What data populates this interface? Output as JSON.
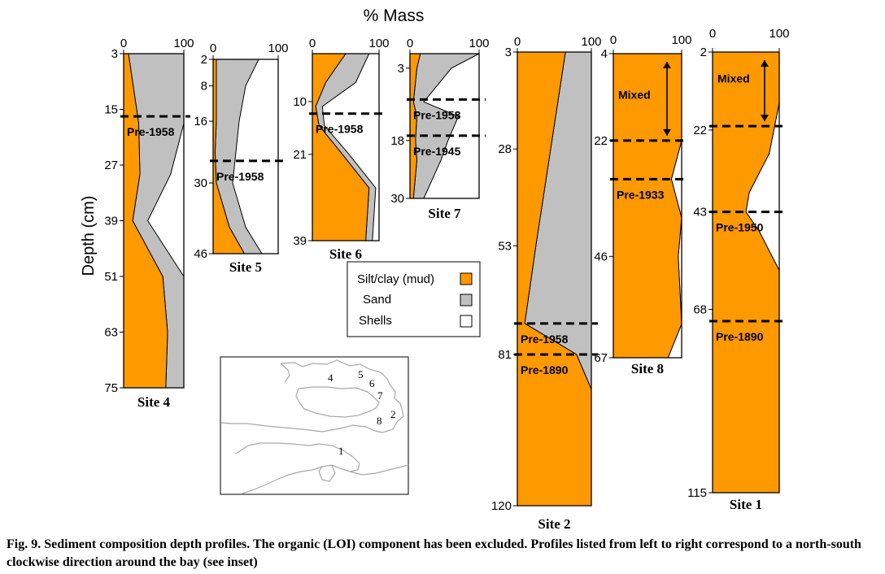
{
  "figure": {
    "title": "% Mass",
    "y_label": "Depth (cm)",
    "caption": "Fig. 9.  Sediment composition depth profiles.  The organic (LOI) component has been excluded. Profiles listed from left to right correspond to a north-south clockwise direction around the bay (see inset)"
  },
  "legend": {
    "items": [
      {
        "label": "Silt/clay (mud)",
        "color": "#ff9900"
      },
      {
        "label": "Sand",
        "color": "#c0c0c0"
      },
      {
        "label": "Shells",
        "color": "#ffffff"
      }
    ]
  },
  "inset_map": {
    "site_labels": [
      "4",
      "5",
      "6",
      "7",
      "2",
      "8",
      "1"
    ]
  },
  "chart_data": [
    {
      "type": "area",
      "site": "Site 4",
      "x_ticks": [
        "0",
        "100"
      ],
      "xlim": [
        0,
        100
      ],
      "y_ticks": [
        "3",
        "15",
        "27",
        "39",
        "51",
        "63",
        "75"
      ],
      "ylim": [
        3,
        75
      ],
      "depth": [
        3,
        18,
        29,
        39,
        51,
        63,
        75
      ],
      "silt": [
        8,
        25,
        27,
        15,
        65,
        73,
        70
      ],
      "silt_sand": [
        100,
        100,
        78,
        40,
        100,
        100,
        100
      ],
      "markers": [
        {
          "depth": 16.5,
          "label": "Pre-1958"
        }
      ]
    },
    {
      "type": "area",
      "site": "Site 5",
      "x_ticks": [
        "0",
        "100"
      ],
      "xlim": [
        0,
        100
      ],
      "y_ticks": [
        "2",
        "8",
        "16",
        "30",
        "46"
      ],
      "ylim": [
        2,
        46
      ],
      "depth": [
        2,
        8,
        16,
        23,
        30,
        40,
        46
      ],
      "silt": [
        5,
        5,
        5,
        3,
        5,
        25,
        48
      ],
      "silt_sand": [
        70,
        50,
        40,
        35,
        30,
        50,
        75
      ],
      "markers": [
        {
          "depth": 25,
          "label": "Pre-1958"
        }
      ]
    },
    {
      "type": "area",
      "site": "Site 6",
      "x_ticks": [
        "0",
        "100"
      ],
      "xlim": [
        0,
        100
      ],
      "y_ticks": [
        "10",
        "21",
        "39"
      ],
      "ylim": [
        0,
        39
      ],
      "depth": [
        0,
        6,
        11,
        15,
        21,
        28,
        39
      ],
      "silt": [
        50,
        20,
        5,
        10,
        45,
        85,
        80
      ],
      "silt_sand": [
        85,
        65,
        15,
        18,
        55,
        95,
        90
      ],
      "markers": [
        {
          "depth": 12.5,
          "label": "Pre-1958"
        }
      ]
    },
    {
      "type": "area",
      "site": "Site 7",
      "x_ticks": [
        "0",
        "100"
      ],
      "xlim": [
        0,
        100
      ],
      "y_ticks": [
        "3",
        "18",
        "30"
      ],
      "ylim": [
        0,
        30
      ],
      "depth": [
        0,
        3,
        10,
        13,
        18,
        22,
        30
      ],
      "silt": [
        15,
        10,
        5,
        10,
        8,
        10,
        5
      ],
      "silt_sand": [
        100,
        60,
        20,
        70,
        55,
        45,
        20
      ],
      "markers": [
        {
          "depth": 9.5,
          "label": "Pre-1958"
        },
        {
          "depth": 17,
          "label": "Pre-1945"
        }
      ]
    },
    {
      "type": "area",
      "site": "Site 2",
      "x_ticks": [
        "0",
        "100"
      ],
      "xlim": [
        0,
        100
      ],
      "y_ticks": [
        "3",
        "28",
        "53",
        "81",
        "120"
      ],
      "ylim": [
        3,
        120
      ],
      "depth": [
        3,
        28,
        53,
        73,
        81,
        90,
        120
      ],
      "silt": [
        65,
        45,
        25,
        10,
        80,
        100,
        100
      ],
      "silt_sand": [
        100,
        100,
        100,
        100,
        100,
        100,
        100
      ],
      "markers": [
        {
          "depth": 73,
          "label": "Pre-1958"
        },
        {
          "depth": 81,
          "label": "Pre-1890"
        }
      ]
    },
    {
      "type": "area",
      "site": "Site 8",
      "x_ticks": [
        "0",
        "100"
      ],
      "xlim": [
        0,
        100
      ],
      "y_ticks": [
        "4",
        "22",
        "46",
        "67"
      ],
      "ylim": [
        4,
        67
      ],
      "depth": [
        4,
        22,
        30,
        38,
        46,
        60,
        67
      ],
      "silt": [
        100,
        100,
        85,
        100,
        95,
        100,
        80
      ],
      "silt_sand": [
        100,
        100,
        85,
        100,
        95,
        100,
        80
      ],
      "markers": [
        {
          "depth": 22,
          "label": ""
        },
        {
          "depth": 30,
          "label": "Pre-1933"
        }
      ],
      "mixed_arrow": {
        "label": "Mixed",
        "from": 4,
        "to": 22
      }
    },
    {
      "type": "area",
      "site": "Site 1",
      "x_ticks": [
        "0",
        "100"
      ],
      "xlim": [
        0,
        100
      ],
      "y_ticks": [
        "2",
        "22",
        "43",
        "68",
        "115"
      ],
      "ylim": [
        2,
        115
      ],
      "depth": [
        2,
        15,
        28,
        38,
        43,
        48,
        58,
        80,
        115
      ],
      "silt": [
        100,
        100,
        85,
        55,
        50,
        70,
        100,
        100,
        100
      ],
      "silt_sand": [
        100,
        100,
        85,
        55,
        50,
        70,
        100,
        100,
        100
      ],
      "markers": [
        {
          "depth": 21,
          "label": ""
        },
        {
          "depth": 43,
          "label": "Pre-1950"
        },
        {
          "depth": 71,
          "label": "Pre-1890"
        }
      ],
      "mixed_arrow": {
        "label": "Mixed",
        "from": 2,
        "to": 21
      }
    }
  ]
}
